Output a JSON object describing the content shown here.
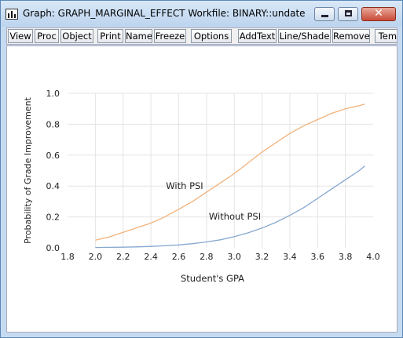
{
  "window": {
    "title": "Graph: GRAPH_MARGINAL_EFFECT   Workfile: BINARY::undated\\",
    "minimize_icon": "minimize-icon",
    "maximize_icon": "maximize-icon",
    "close_icon": "close-icon"
  },
  "toolbar": {
    "view": "View",
    "proc": "Proc",
    "object": "Object",
    "print": "Print",
    "name": "Name",
    "freeze": "Freeze",
    "options": "Options",
    "addtext": "AddText",
    "lineshade": "Line/Shade",
    "remove": "Remove",
    "temp": "Temp"
  },
  "chart_data": {
    "type": "line",
    "title": "",
    "xlabel": "Student's GPA",
    "ylabel": "Probability of Grade Improvement",
    "xlim": [
      1.8,
      4.0
    ],
    "ylim": [
      0.0,
      1.0
    ],
    "x_ticks": [
      "1.8",
      "2.0",
      "2.2",
      "2.4",
      "2.6",
      "2.8",
      "3.0",
      "3.2",
      "3.4",
      "3.6",
      "3.8",
      "4.0"
    ],
    "y_ticks": [
      "0.0",
      "0.2",
      "0.4",
      "0.6",
      "0.8",
      "1.0"
    ],
    "grid": true,
    "colors": {
      "with_psi": "#f2b27a",
      "without_psi": "#86a8d0",
      "grid": "#e4e4e4"
    },
    "annotations": [
      {
        "text": "With PSI",
        "series": "with_psi"
      },
      {
        "text": "Without PSI",
        "series": "without_psi"
      }
    ],
    "series": [
      {
        "key": "with_psi",
        "x": [
          2.0,
          2.1,
          2.2,
          2.3,
          2.4,
          2.5,
          2.6,
          2.7,
          2.8,
          2.9,
          3.0,
          3.1,
          3.2,
          3.3,
          3.4,
          3.5,
          3.6,
          3.7,
          3.8,
          3.9,
          3.94
        ],
        "y": [
          0.05,
          0.07,
          0.1,
          0.13,
          0.16,
          0.2,
          0.25,
          0.3,
          0.36,
          0.42,
          0.48,
          0.55,
          0.62,
          0.68,
          0.74,
          0.79,
          0.83,
          0.87,
          0.9,
          0.92,
          0.93
        ]
      },
      {
        "key": "without_psi",
        "x": [
          2.0,
          2.1,
          2.2,
          2.3,
          2.4,
          2.5,
          2.6,
          2.7,
          2.8,
          2.9,
          3.0,
          3.1,
          3.2,
          3.3,
          3.4,
          3.5,
          3.6,
          3.7,
          3.8,
          3.9,
          3.94
        ],
        "y": [
          0.002,
          0.003,
          0.004,
          0.006,
          0.009,
          0.013,
          0.019,
          0.027,
          0.038,
          0.052,
          0.072,
          0.097,
          0.128,
          0.165,
          0.21,
          0.26,
          0.32,
          0.38,
          0.44,
          0.5,
          0.53
        ]
      }
    ]
  }
}
